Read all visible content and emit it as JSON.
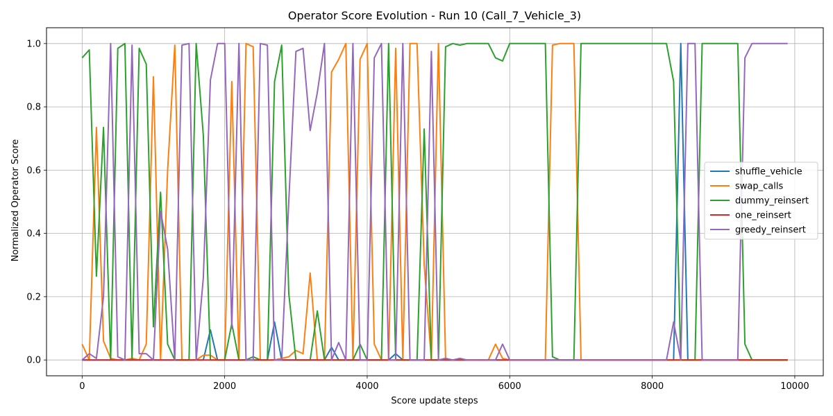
{
  "chart_data": {
    "type": "line",
    "title": "Operator Score Evolution - Run 10 (Call_7_Vehicle_3)",
    "xlabel": "Score update steps",
    "ylabel": "Normalized Operator Score",
    "xlim": [
      -500,
      10400
    ],
    "ylim": [
      -0.05,
      1.05
    ],
    "xticks": [
      0,
      2000,
      4000,
      6000,
      8000,
      10000
    ],
    "xtick_labels": [
      "0",
      "2000",
      "4000",
      "6000",
      "8000",
      "10000"
    ],
    "yticks": [
      0.0,
      0.2,
      0.4,
      0.6,
      0.8,
      1.0
    ],
    "ytick_labels": [
      "0.0",
      "0.2",
      "0.4",
      "0.6",
      "0.8",
      "1.0"
    ],
    "grid": true,
    "legend_position": "center-right",
    "series": [
      {
        "name": "shuffle_vehicle",
        "color": "#1f77b4",
        "points": [
          [
            0,
            0
          ],
          [
            1700,
            0
          ],
          [
            1800,
            0.095
          ],
          [
            1900,
            0
          ],
          [
            2100,
            0
          ],
          [
            2200,
            0
          ],
          [
            2600,
            0
          ],
          [
            2700,
            0.12
          ],
          [
            2800,
            0
          ],
          [
            2900,
            0
          ],
          [
            3000,
            0
          ],
          [
            3100,
            0
          ],
          [
            3200,
            0
          ],
          [
            3300,
            0
          ],
          [
            3400,
            0
          ],
          [
            3500,
            0.04
          ],
          [
            3600,
            0
          ],
          [
            4300,
            0
          ],
          [
            4400,
            0.02
          ],
          [
            4500,
            0
          ],
          [
            8300,
            0
          ],
          [
            8400,
            1.0
          ],
          [
            8500,
            0
          ],
          [
            9900,
            0
          ]
        ]
      },
      {
        "name": "swap_calls",
        "color": "#ff7f0e",
        "points": [
          [
            0,
            0.05
          ],
          [
            100,
            0
          ],
          [
            200,
            0.735
          ],
          [
            300,
            0.06
          ],
          [
            400,
            0.005
          ],
          [
            500,
            0
          ],
          [
            600,
            0
          ],
          [
            700,
            0.005
          ],
          [
            800,
            0
          ],
          [
            900,
            0.05
          ],
          [
            1000,
            0.895
          ],
          [
            1100,
            0
          ],
          [
            1200,
            0.6
          ],
          [
            1300,
            0.995
          ],
          [
            1400,
            0
          ],
          [
            1500,
            0
          ],
          [
            1600,
            0
          ],
          [
            1700,
            0.015
          ],
          [
            1800,
            0.015
          ],
          [
            1900,
            0
          ],
          [
            2000,
            0
          ],
          [
            2100,
            0.88
          ],
          [
            2200,
            0
          ],
          [
            2300,
            1.0
          ],
          [
            2400,
            0.99
          ],
          [
            2500,
            0
          ],
          [
            2600,
            0
          ],
          [
            2700,
            0
          ],
          [
            2800,
            0.005
          ],
          [
            2900,
            0.01
          ],
          [
            3000,
            0.03
          ],
          [
            3100,
            0.02
          ],
          [
            3200,
            0.275
          ],
          [
            3300,
            0
          ],
          [
            3400,
            0
          ],
          [
            3500,
            0.91
          ],
          [
            3600,
            0.95
          ],
          [
            3700,
            1.0
          ],
          [
            3800,
            0
          ],
          [
            3900,
            0.95
          ],
          [
            4000,
            1.0
          ],
          [
            4100,
            0.05
          ],
          [
            4200,
            0
          ],
          [
            4300,
            0
          ],
          [
            4400,
            0.985
          ],
          [
            4500,
            0
          ],
          [
            4600,
            1.0
          ],
          [
            4700,
            1.0
          ],
          [
            4800,
            0.3
          ],
          [
            4900,
            0
          ],
          [
            5000,
            1.0
          ],
          [
            5100,
            0
          ],
          [
            5700,
            0
          ],
          [
            5800,
            0.05
          ],
          [
            5900,
            0.005
          ],
          [
            6000,
            0
          ],
          [
            6500,
            0
          ],
          [
            6600,
            0.995
          ],
          [
            6700,
            1.0
          ],
          [
            6800,
            1.0
          ],
          [
            6900,
            1.0
          ],
          [
            7000,
            0
          ],
          [
            9900,
            0
          ]
        ]
      },
      {
        "name": "dummy_reinsert",
        "color": "#2ca02c",
        "points": [
          [
            0,
            0.955
          ],
          [
            100,
            0.98
          ],
          [
            200,
            0.265
          ],
          [
            300,
            0.735
          ],
          [
            400,
            0
          ],
          [
            500,
            0.985
          ],
          [
            600,
            1.0
          ],
          [
            700,
            0
          ],
          [
            800,
            0.985
          ],
          [
            900,
            0.935
          ],
          [
            1000,
            0.105
          ],
          [
            1100,
            0.53
          ],
          [
            1200,
            0.05
          ],
          [
            1300,
            0
          ],
          [
            1400,
            0
          ],
          [
            1500,
            0
          ],
          [
            1600,
            1.0
          ],
          [
            1700,
            0.71
          ],
          [
            1800,
            0
          ],
          [
            2000,
            0
          ],
          [
            2100,
            0.115
          ],
          [
            2200,
            0
          ],
          [
            2300,
            0
          ],
          [
            2400,
            0.01
          ],
          [
            2500,
            0
          ],
          [
            2600,
            0
          ],
          [
            2700,
            0.88
          ],
          [
            2800,
            0.995
          ],
          [
            2900,
            0.21
          ],
          [
            3000,
            0
          ],
          [
            3100,
            0
          ],
          [
            3200,
            0
          ],
          [
            3300,
            0.155
          ],
          [
            3400,
            0
          ],
          [
            3500,
            0
          ],
          [
            3600,
            0
          ],
          [
            3700,
            0
          ],
          [
            3800,
            0
          ],
          [
            3900,
            0.05
          ],
          [
            4000,
            0
          ],
          [
            4100,
            0
          ],
          [
            4200,
            0
          ],
          [
            4300,
            1.0
          ],
          [
            4400,
            0
          ],
          [
            4500,
            0
          ],
          [
            4600,
            0
          ],
          [
            4700,
            0
          ],
          [
            4800,
            0.73
          ],
          [
            4900,
            0
          ],
          [
            5000,
            0
          ],
          [
            5100,
            0.99
          ],
          [
            5200,
            1.0
          ],
          [
            5300,
            0.995
          ],
          [
            5400,
            1.0
          ],
          [
            5500,
            1.0
          ],
          [
            5600,
            1.0
          ],
          [
            5700,
            1.0
          ],
          [
            5800,
            0.955
          ],
          [
            5900,
            0.945
          ],
          [
            6000,
            1.0
          ],
          [
            6500,
            1.0
          ],
          [
            6600,
            0.01
          ],
          [
            6700,
            0
          ],
          [
            6900,
            0
          ],
          [
            7000,
            1.0
          ],
          [
            8200,
            1.0
          ],
          [
            8300,
            0.88
          ],
          [
            8400,
            0
          ],
          [
            8600,
            0
          ],
          [
            8700,
            1.0
          ],
          [
            9200,
            1.0
          ],
          [
            9300,
            0.05
          ],
          [
            9400,
            0
          ],
          [
            9900,
            0
          ]
        ]
      },
      {
        "name": "one_reinsert",
        "color": "#d62728",
        "points": [
          [
            0,
            0
          ],
          [
            9900,
            0
          ]
        ]
      },
      {
        "name": "greedy_reinsert",
        "color": "#9467bd",
        "points": [
          [
            0,
            0
          ],
          [
            100,
            0.02
          ],
          [
            200,
            0.005
          ],
          [
            300,
            0.2
          ],
          [
            400,
            1.0
          ],
          [
            500,
            0.01
          ],
          [
            600,
            0
          ],
          [
            700,
            0.995
          ],
          [
            800,
            0.02
          ],
          [
            900,
            0.02
          ],
          [
            1000,
            0
          ],
          [
            1100,
            0.47
          ],
          [
            1200,
            0.35
          ],
          [
            1300,
            0
          ],
          [
            1400,
            0.995
          ],
          [
            1500,
            1.0
          ],
          [
            1600,
            0
          ],
          [
            1700,
            0.26
          ],
          [
            1800,
            0.885
          ],
          [
            1900,
            1.0
          ],
          [
            2000,
            1.0
          ],
          [
            2100,
            0.1
          ],
          [
            2200,
            1.0
          ],
          [
            2300,
            0
          ],
          [
            2400,
            0
          ],
          [
            2500,
            1.0
          ],
          [
            2600,
            0.995
          ],
          [
            2700,
            0
          ],
          [
            2800,
            0
          ],
          [
            2900,
            0.5
          ],
          [
            3000,
            0.975
          ],
          [
            3100,
            0.985
          ],
          [
            3200,
            0.725
          ],
          [
            3300,
            0.845
          ],
          [
            3400,
            1.0
          ],
          [
            3500,
            0
          ],
          [
            3600,
            0.055
          ],
          [
            3700,
            0
          ],
          [
            3800,
            1.0
          ],
          [
            3900,
            0
          ],
          [
            4000,
            0
          ],
          [
            4100,
            0.955
          ],
          [
            4200,
            1.0
          ],
          [
            4300,
            0
          ],
          [
            4400,
            0
          ],
          [
            4500,
            1.0
          ],
          [
            4600,
            0
          ],
          [
            4700,
            0
          ],
          [
            4800,
            0
          ],
          [
            4900,
            0.975
          ],
          [
            5000,
            0
          ],
          [
            5100,
            0.005
          ],
          [
            5200,
            0
          ],
          [
            5300,
            0.005
          ],
          [
            5400,
            0
          ],
          [
            5800,
            0
          ],
          [
            5900,
            0.05
          ],
          [
            6000,
            0
          ],
          [
            8200,
            0
          ],
          [
            8300,
            0.12
          ],
          [
            8400,
            0
          ],
          [
            8500,
            1.0
          ],
          [
            8600,
            1.0
          ],
          [
            8700,
            0
          ],
          [
            9200,
            0
          ],
          [
            9300,
            0.955
          ],
          [
            9400,
            1.0
          ],
          [
            9900,
            1.0
          ]
        ]
      }
    ]
  }
}
